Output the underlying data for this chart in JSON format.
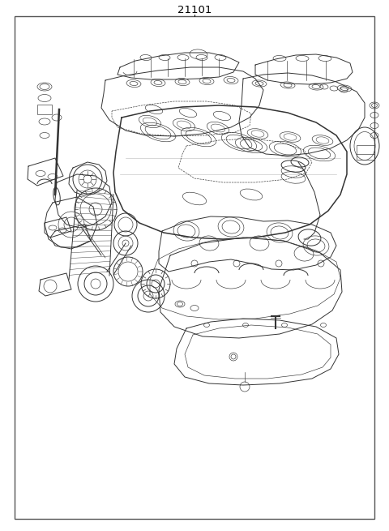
{
  "title": "21101",
  "background_color": "#ffffff",
  "border_color": "#555555",
  "line_color": "#333333",
  "fig_width": 4.8,
  "fig_height": 6.55,
  "dpi": 100,
  "title_fontsize": 9.5,
  "lw_main": 0.7,
  "lw_thin": 0.45,
  "lw_thick": 1.1,
  "lw_border": 1.0
}
